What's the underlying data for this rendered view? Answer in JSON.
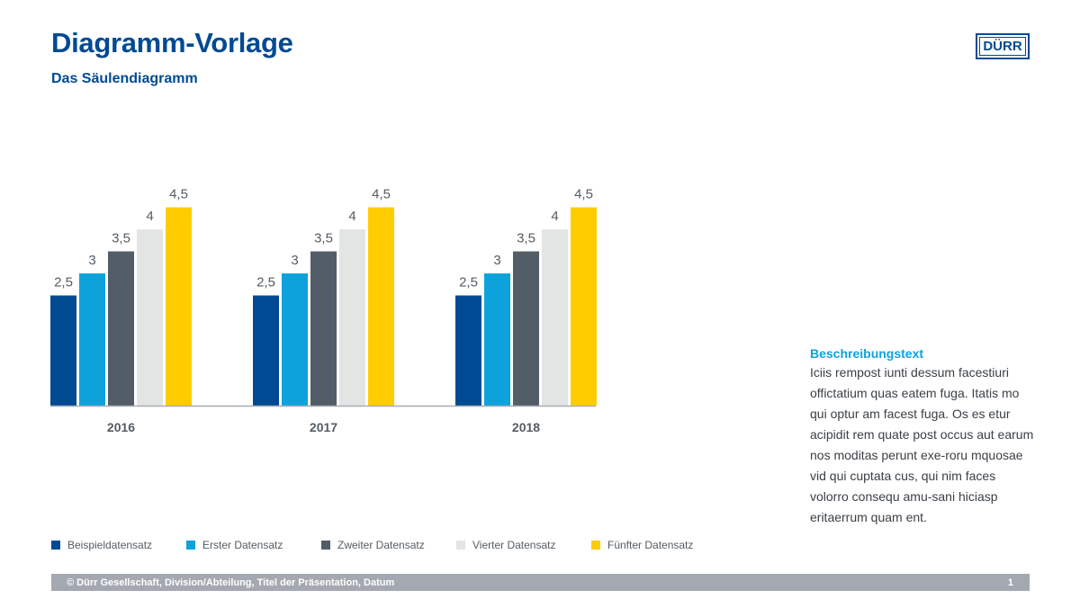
{
  "header": {
    "title": "Diagramm-Vorlage",
    "subtitle": "Das Säulendiagramm",
    "logo_text": "DÜRR"
  },
  "colors": {
    "brand_blue": "#004a93",
    "accent_cyan": "#0ea2dc",
    "footer_bar": "#a4a8b0"
  },
  "chart_data": {
    "type": "bar",
    "categories": [
      "2016",
      "2017",
      "2018"
    ],
    "series": [
      {
        "name": "Beispieldatensatz",
        "color": "#004a93",
        "values": [
          2.5,
          2.5,
          2.5
        ]
      },
      {
        "name": "Erster Datensatz",
        "color": "#0ea2dc",
        "values": [
          3,
          3,
          3
        ]
      },
      {
        "name": "Zweiter Datensatz",
        "color": "#525d68",
        "values": [
          3.5,
          3.5,
          3.5
        ]
      },
      {
        "name": "Vierter Datensatz",
        "color": "#e3e4e4",
        "values": [
          4,
          4,
          4
        ]
      },
      {
        "name": "Fünfter Datensatz",
        "color": "#ffcc00",
        "values": [
          4.5,
          4.5,
          4.5
        ]
      }
    ],
    "data_labels": [
      [
        "2,5",
        "2,5",
        "2,5"
      ],
      [
        "3",
        "3",
        "3"
      ],
      [
        "3,5",
        "3,5",
        "3,5"
      ],
      [
        "4",
        "4",
        "4"
      ],
      [
        "4,5",
        "4,5",
        "4,5"
      ]
    ],
    "ylim": [
      0,
      5
    ],
    "grid": false,
    "y_axis_visible": false,
    "legend_position": "bottom-left"
  },
  "description": {
    "title": "Beschreibungstext",
    "body": "Iciis rempost iunti dessum facestiuri offictatium quas eatem fuga. Itatis mo qui optur am facest fuga. Os es etur acipidit rem quate post occus aut earum nos moditas perunt exe-roru mquosae vid qui cuptata cus, qui nim faces volorro consequ amu-sani hiciasp eritaerrum quam ent."
  },
  "footer": {
    "text": "© Dürr Gesellschaft, Division/Abteilung, Titel der Präsentation, Datum",
    "page_number": "1"
  }
}
